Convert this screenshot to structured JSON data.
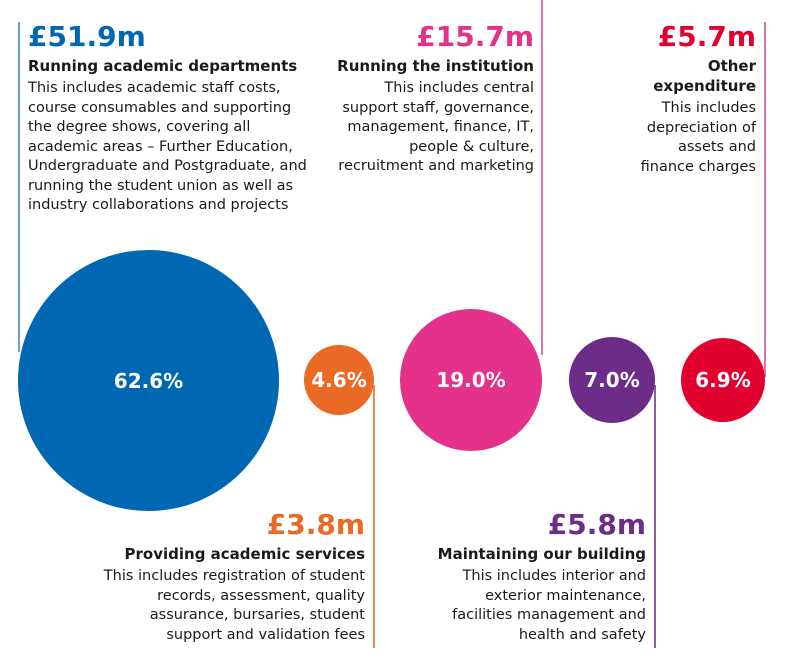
{
  "items": [
    {
      "amount": "£51.9m",
      "title": "Running academic departments",
      "description": "This includes academic staff costs, course consumables and supporting the degree shows, covering all academic areas – Further Education, Undergraduate and Postgraduate, and running the student union as well as industry collaborations and projects",
      "percent_label": "62.6%",
      "percent": 62.6,
      "color": "#0068b3"
    },
    {
      "amount": "£3.8m",
      "title": "Providing academic services",
      "description": "This includes registration of student records, assessment, quality assurance, bursaries, student support and validation fees",
      "percent_label": "4.6%",
      "percent": 4.6,
      "color": "#ea6a25"
    },
    {
      "amount": "£15.7m",
      "title": "Running the institution",
      "description": "This includes central support staff, governance, management, finance, IT, people & culture, recruitment and marketing",
      "percent_label": "19.0%",
      "percent": 19.0,
      "color": "#e4318a"
    },
    {
      "amount": "£5.8m",
      "title": "Maintaining our building",
      "description": "This includes interior and exterior maintenance, facilities management and health and safety",
      "percent_label": "7.0%",
      "percent": 7.0,
      "color": "#6c2c88"
    },
    {
      "amount": "£5.7m",
      "title": "Other expenditure",
      "description": "This includes depreciation of assets and finance charges",
      "percent_label": "6.9%",
      "percent": 6.9,
      "color": "#e2002f"
    }
  ]
}
